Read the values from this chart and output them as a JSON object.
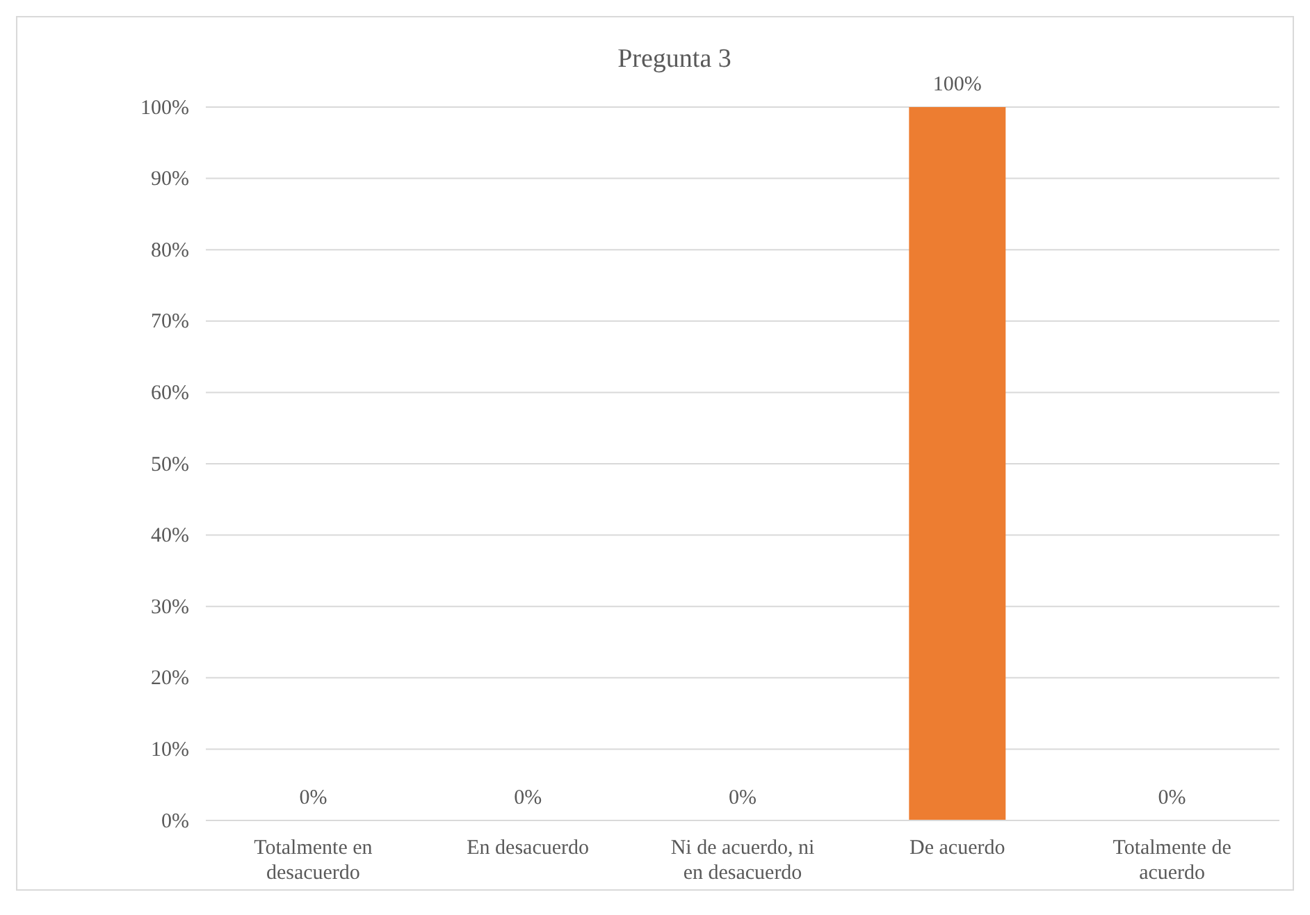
{
  "chart_data": {
    "type": "bar",
    "title": "Pregunta 3",
    "categories": [
      "Totalmente en desacuerdo",
      "En desacuerdo",
      "Ni de acuerdo, ni en desacuerdo",
      "De acuerdo",
      "Totalmente de acuerdo"
    ],
    "values": [
      0,
      0,
      0,
      100,
      0
    ],
    "value_labels": [
      "0%",
      "0%",
      "0%",
      "100%",
      "0%"
    ],
    "color": "#ed7d31",
    "ylim": [
      0,
      100
    ],
    "yticks": [
      {
        "value": 0,
        "label": "0%"
      },
      {
        "value": 10,
        "label": "10%"
      },
      {
        "value": 20,
        "label": "20%"
      },
      {
        "value": 30,
        "label": "30%"
      },
      {
        "value": 40,
        "label": "40%"
      },
      {
        "value": 50,
        "label": "50%"
      },
      {
        "value": 60,
        "label": "60%"
      },
      {
        "value": 70,
        "label": "70%"
      },
      {
        "value": 80,
        "label": "80%"
      },
      {
        "value": 90,
        "label": "90%"
      },
      {
        "value": 100,
        "label": "100%"
      }
    ],
    "grid": "y"
  }
}
